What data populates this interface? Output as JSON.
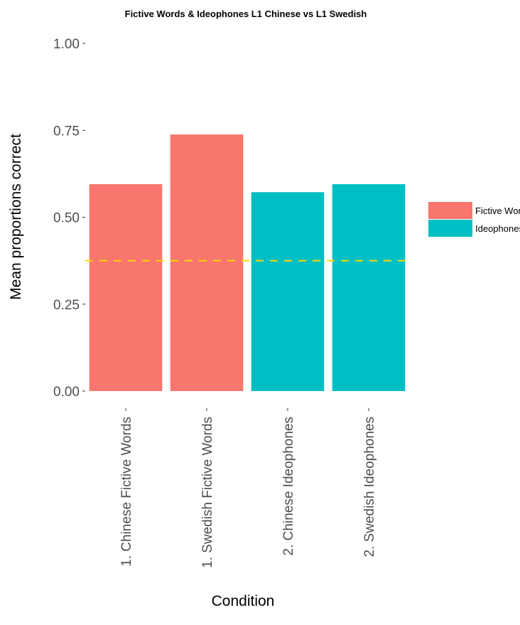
{
  "chart_data": {
    "type": "bar",
    "title": "Fictive Words & Ideophones L1 Chinese vs L1 Swedish",
    "xlabel": "Condition",
    "ylabel": "Mean proportions correct",
    "categories": [
      "1. Chinese Fictive Words",
      "1. Swedish Fictive Words",
      "2. Chinese Ideophones",
      "2. Swedish Ideophones"
    ],
    "values": [
      0.595,
      0.738,
      0.572,
      0.595
    ],
    "groups": [
      "Fictive Words",
      "Fictive Words",
      "Ideophones",
      "Ideophones"
    ],
    "legend": {
      "position": "right",
      "entries": [
        {
          "name": "Fictive Words",
          "color": "#F8766D"
        },
        {
          "name": "Ideophones",
          "color": "#00BFC4"
        }
      ]
    },
    "yticks": [
      "0.00",
      "0.25",
      "0.50",
      "0.75",
      "1.00"
    ],
    "ylim": [
      0,
      1
    ],
    "reference_line": {
      "y": 0.375,
      "style": "dashed",
      "color": "#FFD700"
    },
    "grid": false
  }
}
